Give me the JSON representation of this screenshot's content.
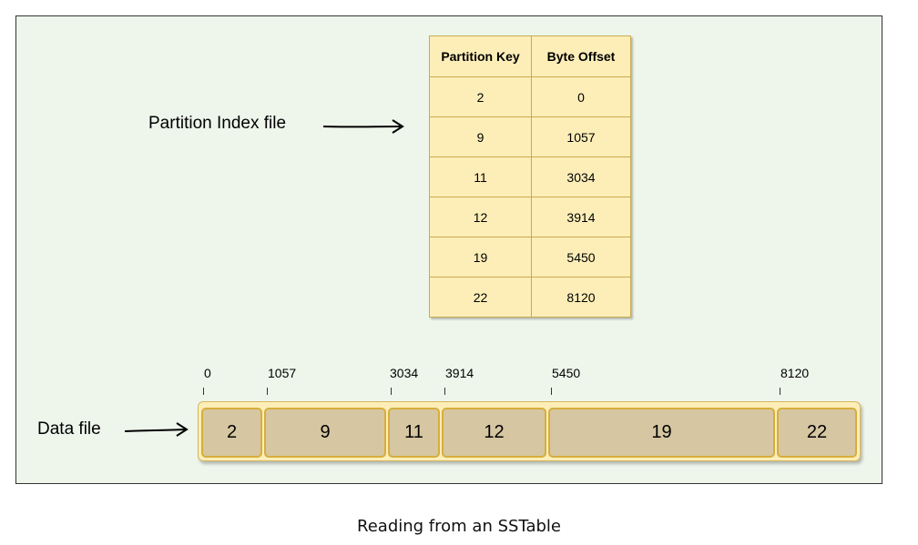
{
  "index_label": "Partition Index file",
  "data_label": "Data file",
  "index_table": {
    "headers": [
      "Partition Key",
      "Byte Offset"
    ],
    "rows": [
      [
        "2",
        "0"
      ],
      [
        "9",
        "1057"
      ],
      [
        "11",
        "3034"
      ],
      [
        "12",
        "3914"
      ],
      [
        "19",
        "5450"
      ],
      [
        "22",
        "8120"
      ]
    ]
  },
  "data_file": {
    "offsets": [
      "0",
      "1057",
      "3034",
      "3914",
      "5450",
      "8120"
    ],
    "partitions": [
      "2",
      "9",
      "11",
      "12",
      "19",
      "22"
    ]
  },
  "caption": "Reading from an SSTable",
  "colors": {
    "canvas": "#eef6ec",
    "cell_fill": "#fdeeb8",
    "segment_fill": "#d6c7a2",
    "segment_border": "#d6ae3c"
  }
}
